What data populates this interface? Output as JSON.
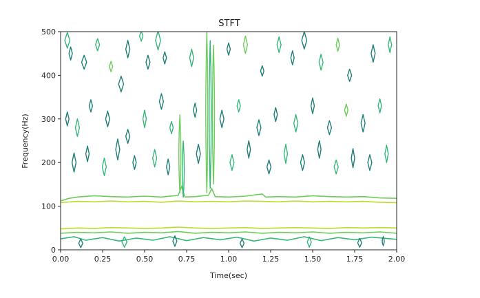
{
  "chart_data": {
    "type": "contour",
    "title": "STFT",
    "xlabel": "Time(sec)",
    "ylabel": "Frequency(Hz)",
    "xlim": [
      0,
      2
    ],
    "ylim": [
      0,
      500
    ],
    "x_ticks": [
      "0.00",
      "0.25",
      "0.50",
      "0.75",
      "1.00",
      "1.25",
      "1.50",
      "1.75",
      "2.00"
    ],
    "y_ticks": [
      "0",
      "100",
      "200",
      "300",
      "400",
      "500"
    ],
    "grid": false,
    "colors": {
      "dark": "#1f7f78",
      "mid": "#35b779",
      "light": "#6ccd5a",
      "pale": "#b5de2b"
    },
    "bands": [
      {
        "level": "light",
        "points": [
          [
            0,
            112
          ],
          [
            0.05,
            118
          ],
          [
            0.1,
            121
          ],
          [
            0.2,
            124
          ],
          [
            0.3,
            122
          ],
          [
            0.4,
            121
          ],
          [
            0.5,
            123
          ],
          [
            0.6,
            121
          ],
          [
            0.7,
            125
          ],
          [
            0.72,
            145
          ],
          [
            0.74,
            121
          ],
          [
            0.8,
            122
          ],
          [
            0.88,
            125
          ],
          [
            0.9,
            140
          ],
          [
            0.92,
            122
          ],
          [
            1.0,
            121
          ],
          [
            1.1,
            123
          ],
          [
            1.2,
            128
          ],
          [
            1.22,
            121
          ],
          [
            1.3,
            122
          ],
          [
            1.4,
            121
          ],
          [
            1.5,
            124
          ],
          [
            1.6,
            122
          ],
          [
            1.7,
            121
          ],
          [
            1.8,
            122
          ],
          [
            1.9,
            119
          ],
          [
            2.0,
            118
          ]
        ]
      },
      {
        "level": "pale",
        "points": [
          [
            0,
            108
          ],
          [
            0.1,
            111
          ],
          [
            0.2,
            110
          ],
          [
            0.3,
            112
          ],
          [
            0.4,
            110
          ],
          [
            0.5,
            111
          ],
          [
            0.6,
            109
          ],
          [
            0.7,
            112
          ],
          [
            0.8,
            110
          ],
          [
            0.9,
            111
          ],
          [
            1.0,
            110
          ],
          [
            1.1,
            112
          ],
          [
            1.2,
            111
          ],
          [
            1.3,
            110
          ],
          [
            1.4,
            112
          ],
          [
            1.5,
            110
          ],
          [
            1.6,
            111
          ],
          [
            1.7,
            110
          ],
          [
            1.8,
            111
          ],
          [
            1.9,
            109
          ],
          [
            2.0,
            108
          ]
        ]
      },
      {
        "level": "pale",
        "points": [
          [
            0,
            48
          ],
          [
            0.1,
            50
          ],
          [
            0.2,
            49
          ],
          [
            0.3,
            51
          ],
          [
            0.4,
            50
          ],
          [
            0.5,
            49
          ],
          [
            0.6,
            50
          ],
          [
            0.7,
            52
          ],
          [
            0.8,
            50
          ],
          [
            0.9,
            49
          ],
          [
            1.0,
            50
          ],
          [
            1.1,
            51
          ],
          [
            1.2,
            49
          ],
          [
            1.3,
            50
          ],
          [
            1.4,
            51
          ],
          [
            1.5,
            50
          ],
          [
            1.6,
            49
          ],
          [
            1.7,
            51
          ],
          [
            1.8,
            50
          ],
          [
            1.9,
            51
          ],
          [
            2.0,
            50
          ]
        ]
      },
      {
        "level": "light",
        "points": [
          [
            0,
            38
          ],
          [
            0.1,
            40
          ],
          [
            0.2,
            39
          ],
          [
            0.3,
            41
          ],
          [
            0.4,
            38
          ],
          [
            0.5,
            40
          ],
          [
            0.6,
            39
          ],
          [
            0.7,
            42
          ],
          [
            0.8,
            38
          ],
          [
            0.9,
            40
          ],
          [
            1.0,
            39
          ],
          [
            1.1,
            41
          ],
          [
            1.2,
            38
          ],
          [
            1.3,
            40
          ],
          [
            1.4,
            39
          ],
          [
            1.5,
            41
          ],
          [
            1.6,
            38
          ],
          [
            1.7,
            40
          ],
          [
            1.8,
            39
          ],
          [
            1.9,
            41
          ],
          [
            2.0,
            38
          ]
        ]
      },
      {
        "level": "mid",
        "points": [
          [
            0,
            25
          ],
          [
            0.08,
            30
          ],
          [
            0.15,
            22
          ],
          [
            0.25,
            28
          ],
          [
            0.35,
            20
          ],
          [
            0.45,
            27
          ],
          [
            0.55,
            22
          ],
          [
            0.65,
            30
          ],
          [
            0.75,
            21
          ],
          [
            0.85,
            28
          ],
          [
            0.95,
            23
          ],
          [
            1.05,
            29
          ],
          [
            1.15,
            20
          ],
          [
            1.25,
            27
          ],
          [
            1.35,
            22
          ],
          [
            1.45,
            30
          ],
          [
            1.55,
            21
          ],
          [
            1.65,
            28
          ],
          [
            1.75,
            23
          ],
          [
            1.85,
            29
          ],
          [
            2.0,
            24
          ]
        ]
      }
    ],
    "vertical_streaks": [
      {
        "t": 0.71,
        "f0": 130,
        "f1": 310,
        "level": "light"
      },
      {
        "t": 0.73,
        "f0": 120,
        "f1": 250,
        "level": "mid"
      },
      {
        "t": 0.87,
        "f0": 130,
        "f1": 500,
        "level": "light"
      },
      {
        "t": 0.89,
        "f0": 140,
        "f1": 480,
        "level": "mid"
      },
      {
        "t": 0.91,
        "f0": 150,
        "f1": 470,
        "level": "light"
      },
      {
        "t": 1.92,
        "f0": 10,
        "f1": 30,
        "level": "dark"
      }
    ],
    "blobs": [
      {
        "t": 0.04,
        "f": 480,
        "w": 0.015,
        "h": 18,
        "level": "mid"
      },
      {
        "t": 0.06,
        "f": 450,
        "w": 0.01,
        "h": 15,
        "level": "dark"
      },
      {
        "t": 0.14,
        "f": 430,
        "w": 0.015,
        "h": 16,
        "level": "dark"
      },
      {
        "t": 0.22,
        "f": 470,
        "w": 0.012,
        "h": 14,
        "level": "mid"
      },
      {
        "t": 0.3,
        "f": 420,
        "w": 0.01,
        "h": 12,
        "level": "light"
      },
      {
        "t": 0.36,
        "f": 380,
        "w": 0.015,
        "h": 18,
        "level": "dark"
      },
      {
        "t": 0.4,
        "f": 460,
        "w": 0.012,
        "h": 20,
        "level": "dark"
      },
      {
        "t": 0.48,
        "f": 490,
        "w": 0.01,
        "h": 12,
        "level": "mid"
      },
      {
        "t": 0.52,
        "f": 430,
        "w": 0.012,
        "h": 16,
        "level": "dark"
      },
      {
        "t": 0.58,
        "f": 480,
        "w": 0.015,
        "h": 22,
        "level": "mid"
      },
      {
        "t": 0.62,
        "f": 440,
        "w": 0.01,
        "h": 14,
        "level": "dark"
      },
      {
        "t": 0.78,
        "f": 440,
        "w": 0.012,
        "h": 20,
        "level": "mid"
      },
      {
        "t": 1.0,
        "f": 460,
        "w": 0.01,
        "h": 14,
        "level": "dark"
      },
      {
        "t": 1.1,
        "f": 470,
        "w": 0.012,
        "h": 20,
        "level": "light"
      },
      {
        "t": 1.2,
        "f": 410,
        "w": 0.01,
        "h": 12,
        "level": "dark"
      },
      {
        "t": 1.3,
        "f": 470,
        "w": 0.012,
        "h": 18,
        "level": "mid"
      },
      {
        "t": 1.38,
        "f": 440,
        "w": 0.01,
        "h": 16,
        "level": "dark"
      },
      {
        "t": 1.45,
        "f": 480,
        "w": 0.015,
        "h": 20,
        "level": "dark"
      },
      {
        "t": 1.55,
        "f": 430,
        "w": 0.012,
        "h": 18,
        "level": "mid"
      },
      {
        "t": 1.65,
        "f": 470,
        "w": 0.01,
        "h": 15,
        "level": "light"
      },
      {
        "t": 1.72,
        "f": 400,
        "w": 0.012,
        "h": 14,
        "level": "dark"
      },
      {
        "t": 1.86,
        "f": 450,
        "w": 0.012,
        "h": 20,
        "level": "dark"
      },
      {
        "t": 1.96,
        "f": 470,
        "w": 0.01,
        "h": 18,
        "level": "mid"
      },
      {
        "t": 0.04,
        "f": 300,
        "w": 0.01,
        "h": 16,
        "level": "dark"
      },
      {
        "t": 0.1,
        "f": 280,
        "w": 0.012,
        "h": 20,
        "level": "mid"
      },
      {
        "t": 0.18,
        "f": 330,
        "w": 0.01,
        "h": 14,
        "level": "dark"
      },
      {
        "t": 0.28,
        "f": 300,
        "w": 0.012,
        "h": 18,
        "level": "dark"
      },
      {
        "t": 0.4,
        "f": 260,
        "w": 0.012,
        "h": 16,
        "level": "dark"
      },
      {
        "t": 0.5,
        "f": 300,
        "w": 0.01,
        "h": 20,
        "level": "mid"
      },
      {
        "t": 0.6,
        "f": 340,
        "w": 0.012,
        "h": 18,
        "level": "dark"
      },
      {
        "t": 0.66,
        "f": 280,
        "w": 0.01,
        "h": 14,
        "level": "mid"
      },
      {
        "t": 0.8,
        "f": 320,
        "w": 0.01,
        "h": 16,
        "level": "dark"
      },
      {
        "t": 0.96,
        "f": 300,
        "w": 0.012,
        "h": 20,
        "level": "dark"
      },
      {
        "t": 1.06,
        "f": 330,
        "w": 0.01,
        "h": 14,
        "level": "mid"
      },
      {
        "t": 1.18,
        "f": 280,
        "w": 0.012,
        "h": 18,
        "level": "dark"
      },
      {
        "t": 1.28,
        "f": 310,
        "w": 0.01,
        "h": 16,
        "level": "dark"
      },
      {
        "t": 1.4,
        "f": 290,
        "w": 0.012,
        "h": 20,
        "level": "mid"
      },
      {
        "t": 1.5,
        "f": 330,
        "w": 0.01,
        "h": 18,
        "level": "dark"
      },
      {
        "t": 1.6,
        "f": 280,
        "w": 0.012,
        "h": 16,
        "level": "dark"
      },
      {
        "t": 1.7,
        "f": 320,
        "w": 0.01,
        "h": 14,
        "level": "light"
      },
      {
        "t": 1.8,
        "f": 290,
        "w": 0.012,
        "h": 20,
        "level": "dark"
      },
      {
        "t": 1.9,
        "f": 330,
        "w": 0.01,
        "h": 16,
        "level": "mid"
      },
      {
        "t": 0.08,
        "f": 200,
        "w": 0.012,
        "h": 22,
        "level": "dark"
      },
      {
        "t": 0.16,
        "f": 220,
        "w": 0.01,
        "h": 18,
        "level": "dark"
      },
      {
        "t": 0.26,
        "f": 190,
        "w": 0.012,
        "h": 20,
        "level": "mid"
      },
      {
        "t": 0.34,
        "f": 230,
        "w": 0.012,
        "h": 24,
        "level": "dark"
      },
      {
        "t": 0.44,
        "f": 200,
        "w": 0.01,
        "h": 16,
        "level": "dark"
      },
      {
        "t": 0.56,
        "f": 210,
        "w": 0.012,
        "h": 20,
        "level": "mid"
      },
      {
        "t": 0.64,
        "f": 190,
        "w": 0.01,
        "h": 18,
        "level": "dark"
      },
      {
        "t": 0.82,
        "f": 220,
        "w": 0.012,
        "h": 22,
        "level": "dark"
      },
      {
        "t": 1.02,
        "f": 200,
        "w": 0.012,
        "h": 18,
        "level": "mid"
      },
      {
        "t": 1.12,
        "f": 230,
        "w": 0.01,
        "h": 20,
        "level": "dark"
      },
      {
        "t": 1.24,
        "f": 190,
        "w": 0.012,
        "h": 16,
        "level": "dark"
      },
      {
        "t": 1.34,
        "f": 220,
        "w": 0.01,
        "h": 22,
        "level": "mid"
      },
      {
        "t": 1.44,
        "f": 200,
        "w": 0.012,
        "h": 18,
        "level": "dark"
      },
      {
        "t": 1.54,
        "f": 230,
        "w": 0.01,
        "h": 20,
        "level": "dark"
      },
      {
        "t": 1.64,
        "f": 190,
        "w": 0.012,
        "h": 16,
        "level": "mid"
      },
      {
        "t": 1.74,
        "f": 210,
        "w": 0.01,
        "h": 22,
        "level": "dark"
      },
      {
        "t": 1.84,
        "f": 200,
        "w": 0.012,
        "h": 18,
        "level": "dark"
      },
      {
        "t": 1.94,
        "f": 220,
        "w": 0.01,
        "h": 20,
        "level": "mid"
      },
      {
        "t": 0.12,
        "f": 15,
        "w": 0.012,
        "h": 10,
        "level": "dark"
      },
      {
        "t": 0.38,
        "f": 18,
        "w": 0.015,
        "h": 12,
        "level": "mid"
      },
      {
        "t": 0.68,
        "f": 20,
        "w": 0.012,
        "h": 12,
        "level": "dark"
      },
      {
        "t": 1.08,
        "f": 15,
        "w": 0.012,
        "h": 10,
        "level": "dark"
      },
      {
        "t": 1.48,
        "f": 18,
        "w": 0.012,
        "h": 12,
        "level": "mid"
      },
      {
        "t": 1.78,
        "f": 16,
        "w": 0.012,
        "h": 10,
        "level": "dark"
      }
    ]
  }
}
